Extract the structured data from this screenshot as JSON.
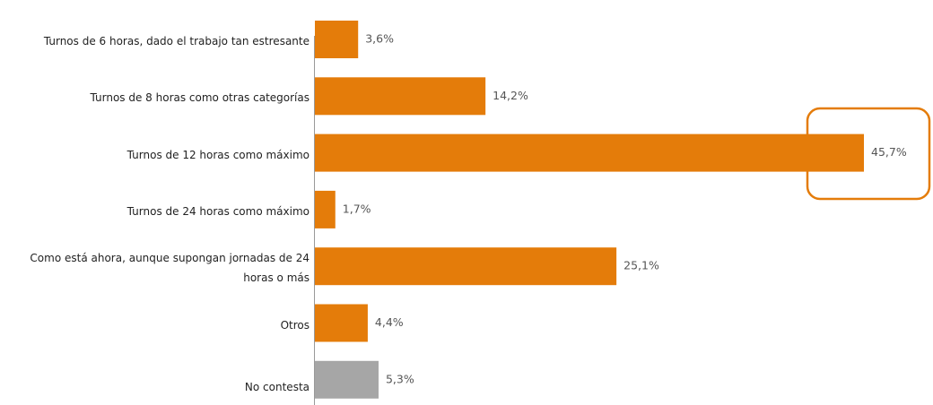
{
  "chart_data": {
    "type": "bar",
    "orientation": "horizontal",
    "categories": [
      "Turnos de 6 horas, dado el trabajo tan estresante",
      "Turnos de 8 horas como otras categorías",
      "Turnos de 12 horas como máximo",
      "Turnos de 24 horas como máximo",
      "Como está ahora, aunque supongan jornadas de 24 horas o más",
      "Otros",
      "No contesta"
    ],
    "values": [
      3.6,
      14.2,
      45.7,
      1.7,
      25.1,
      4.4,
      5.3
    ],
    "value_labels": [
      "3,6%",
      "14,2%",
      "45,7%",
      "1,7%",
      "25,1%",
      "4,4%",
      "5,3%"
    ],
    "colors": [
      "#e47c0a",
      "#e47c0a",
      "#e47c0a",
      "#e47c0a",
      "#e47c0a",
      "#e47c0a",
      "#a6a6a6"
    ]
  }
}
